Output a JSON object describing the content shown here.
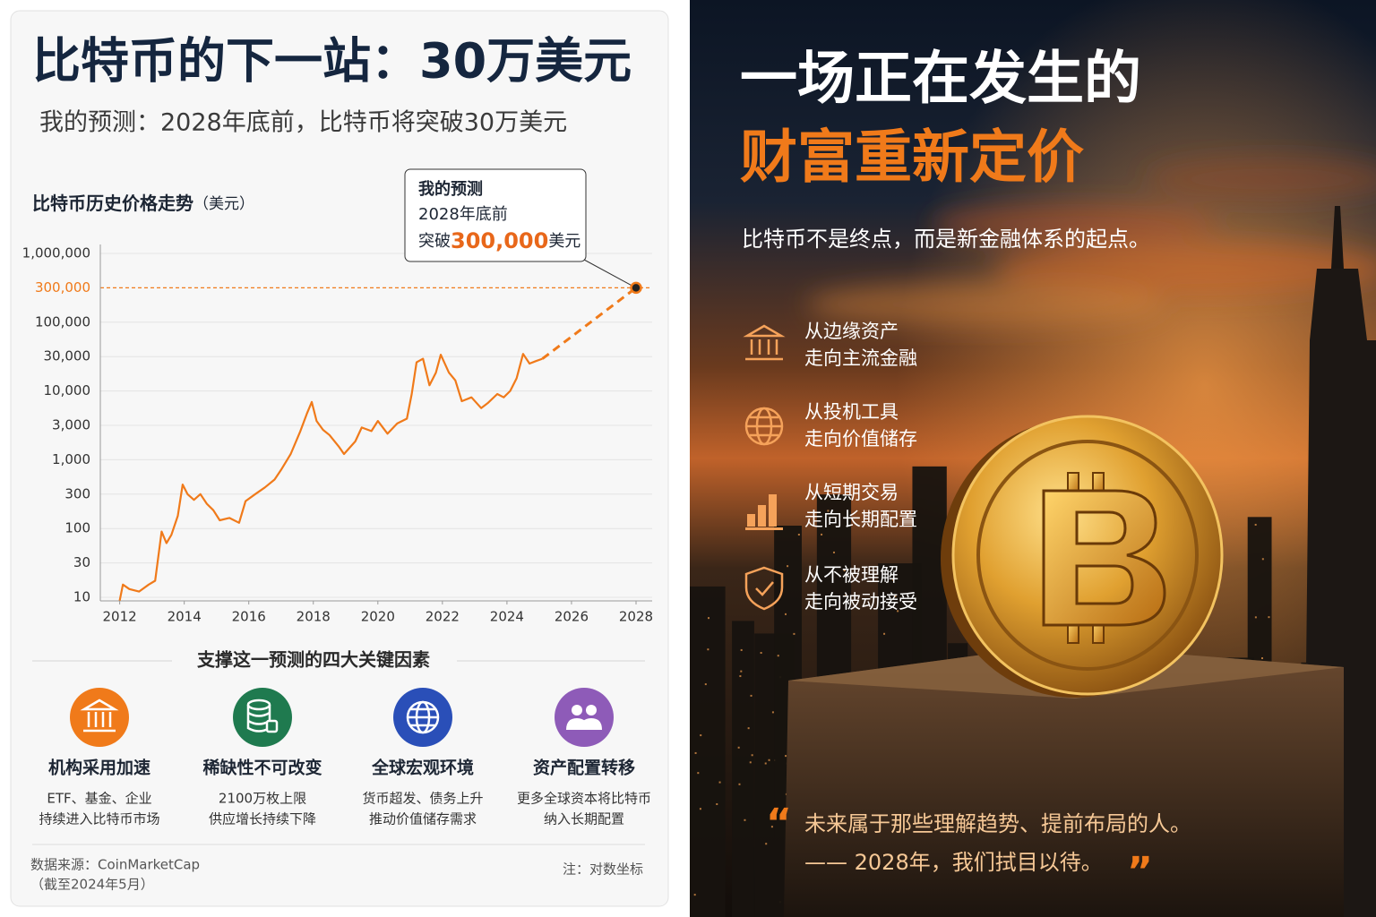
{
  "left": {
    "title": "比特币的下一站：30万美元",
    "subtitle": "我的预测：2028年底前，比特币将突破30万美元",
    "factors_heading": "支撑这一预测的四大关键因素",
    "factors": [
      {
        "title": "机构采用加速",
        "lines": [
          "ETF、基金、企业",
          "持续进入比特币市场"
        ]
      },
      {
        "title": "稀缺性不可改变",
        "lines": [
          "2100万枚上限",
          "供应增长持续下降"
        ]
      },
      {
        "title": "全球宏观环境",
        "lines": [
          "货币超发、债务上升",
          "推动价值储存需求"
        ]
      },
      {
        "title": "资产配置转移",
        "lines": [
          "更多全球资本将比特币",
          "纳入长期配置"
        ]
      }
    ],
    "source": "数据来源：CoinMarketCap",
    "source_date": "（截至2024年5月）",
    "note": "注：对数坐标"
  },
  "chart_data": {
    "type": "line",
    "title": "比特币历史价格走势",
    "ylabel": "（美元）",
    "log_scale": true,
    "grid": true,
    "xlim": [
      2011.4,
      2028.5
    ],
    "xticks": [
      2012,
      2014,
      2016,
      2018,
      2020,
      2022,
      2024,
      2026,
      2028
    ],
    "ylim": [
      10,
      1000000
    ],
    "yticks": [
      10,
      30,
      100,
      300,
      {
        "value": 1000,
        "label": "1,000"
      },
      {
        "value": 3000,
        "label": "3,000"
      },
      {
        "value": 10000,
        "label": "10,000"
      },
      {
        "value": 30000,
        "label": "30,000"
      },
      {
        "value": 100000,
        "label": "100,000"
      },
      {
        "value": 300000,
        "label": "300,000"
      },
      {
        "value": 1000000,
        "label": "1,000,000"
      }
    ],
    "reference_line": {
      "value": 300000,
      "color": "#f07a1a"
    },
    "series": [
      {
        "color": "#f07a1a",
        "dashed": false,
        "x": [
          2012.0,
          2012.1,
          2012.3,
          2012.6,
          2012.9,
          2013.1,
          2013.3,
          2013.45,
          2013.6,
          2013.8,
          2013.95,
          2014.1,
          2014.3,
          2014.5,
          2014.7,
          2014.9,
          2015.1,
          2015.4,
          2015.7,
          2015.9,
          2016.2,
          2016.5,
          2016.8,
          2017.0,
          2017.3,
          2017.6,
          2017.8,
          2017.95,
          2018.1,
          2018.3,
          2018.5,
          2018.8,
          2018.95,
          2019.3,
          2019.5,
          2019.8,
          2020.0,
          2020.3,
          2020.6,
          2020.9,
          2021.05,
          2021.2,
          2021.4,
          2021.6,
          2021.8,
          2021.95,
          2022.2,
          2022.4,
          2022.6,
          2022.9,
          2023.2,
          2023.4,
          2023.7,
          2023.9,
          2024.1,
          2024.3,
          2024.5,
          2024.7,
          2024.9,
          2025.1
        ],
        "values": [
          9,
          15,
          13,
          12,
          15,
          17,
          90,
          60,
          80,
          150,
          420,
          300,
          250,
          300,
          220,
          180,
          130,
          140,
          120,
          240,
          300,
          380,
          500,
          700,
          1200,
          2500,
          4500,
          6800,
          3500,
          2600,
          2200,
          1500,
          1200,
          1800,
          2800,
          2500,
          3500,
          2300,
          3200,
          3800,
          9000,
          25000,
          28000,
          12000,
          18000,
          32000,
          18000,
          14000,
          7000,
          8000,
          5500,
          6500,
          9000,
          8000,
          10000,
          15000,
          33000,
          24000,
          26000,
          28000
        ]
      },
      {
        "color": "#f07a1a",
        "dashed": true,
        "x": [
          2025.1,
          2028
        ],
        "values": [
          28000,
          300000
        ]
      }
    ],
    "annotation": {
      "heading": "我的预测",
      "when": "2028年底前",
      "prefix": "突破",
      "value": "300,000",
      "suffix": "美元"
    }
  },
  "right": {
    "headline": [
      "一场正在发生的",
      "财富重新定价"
    ],
    "subtitle": "比特币不是终点，而是新金融体系的起点。",
    "shifts": [
      {
        "from": "从边缘资产",
        "to": "走向主流金融"
      },
      {
        "from": "从投机工具",
        "to": "走向价值储存"
      },
      {
        "from": "从短期交易",
        "to": "走向长期配置"
      },
      {
        "from": "从不被理解",
        "to": "走向被动接受"
      }
    ],
    "quote_open": "“",
    "quote": [
      "未来属于那些理解趋势、提前布局的人。",
      "—— 2028年，我们拭目以待。"
    ],
    "quote_close": "”"
  }
}
